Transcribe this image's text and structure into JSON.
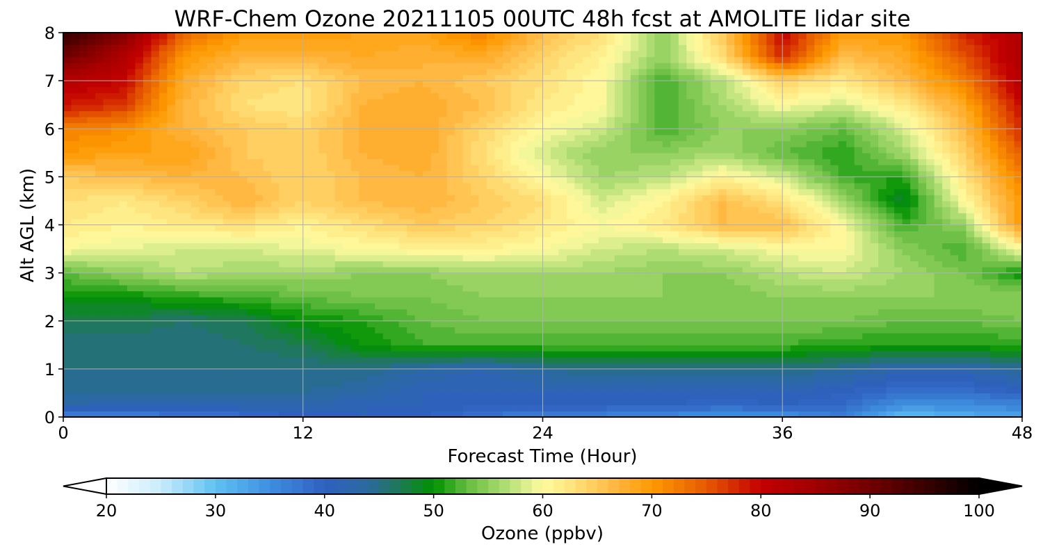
{
  "chart_data": {
    "type": "heatmap",
    "title": "WRF-Chem Ozone  20211105 00UTC 48h fcst at AMOLITE lidar site",
    "xlabel": "Forecast Time (Hour)",
    "ylabel": "Alt AGL (km)",
    "xlim": [
      0,
      48
    ],
    "ylim": [
      0,
      8
    ],
    "x_ticks": [
      "0",
      "12",
      "24",
      "36",
      "48"
    ],
    "y_ticks": [
      "0",
      "1",
      "2",
      "3",
      "4",
      "5",
      "6",
      "7",
      "8"
    ],
    "grid": true,
    "x_hours": [
      0,
      3,
      6,
      9,
      12,
      15,
      18,
      21,
      24,
      27,
      30,
      33,
      36,
      39,
      42,
      45,
      48
    ],
    "y_km": [
      0,
      0.25,
      0.5,
      1,
      1.5,
      2,
      2.5,
      3,
      3.5,
      4,
      4.5,
      5,
      5.5,
      6,
      6.5,
      7,
      7.5,
      8
    ],
    "ozone_ppbv": [
      [
        35,
        36,
        37,
        38,
        40,
        41,
        40,
        38,
        36,
        36,
        35,
        34,
        34,
        37,
        30,
        32,
        33
      ],
      [
        43,
        42,
        42,
        42,
        42,
        41,
        41,
        40,
        40,
        40,
        40,
        39,
        40,
        39,
        35,
        35,
        36
      ],
      [
        44,
        44,
        44,
        44,
        44,
        43,
        41,
        41,
        41,
        41,
        41,
        41,
        41,
        40,
        38,
        38,
        40
      ],
      [
        45,
        45,
        45,
        45,
        45,
        45,
        43,
        42,
        44,
        45,
        45,
        45,
        45,
        44,
        42,
        42,
        44
      ],
      [
        45,
        45,
        45,
        46,
        47,
        50,
        52,
        52,
        52,
        52,
        52,
        52,
        52,
        51,
        51,
        51,
        51
      ],
      [
        47,
        47,
        46,
        47,
        50,
        51,
        53,
        54,
        54,
        54,
        54,
        54,
        54,
        54,
        53,
        53,
        54
      ],
      [
        50,
        50,
        51,
        52,
        53,
        54,
        54,
        55,
        55,
        55,
        55,
        54,
        55,
        55,
        55,
        55,
        55
      ],
      [
        53,
        55,
        57,
        56,
        56,
        55,
        55,
        56,
        56,
        56,
        55,
        55,
        57,
        58,
        56,
        54,
        50
      ],
      [
        60,
        59,
        58,
        58,
        59,
        60,
        61,
        61,
        60,
        58,
        57,
        58,
        60,
        60,
        55,
        52,
        60
      ],
      [
        62,
        61,
        62,
        63,
        61,
        63,
        65,
        64,
        62,
        60,
        62,
        66,
        66,
        60,
        52,
        55,
        70
      ],
      [
        63,
        62,
        64,
        67,
        64,
        66,
        67,
        65,
        63,
        58,
        61,
        66,
        63,
        56,
        48,
        60,
        70
      ],
      [
        65,
        66,
        67,
        66,
        64,
        66,
        67,
        64,
        60,
        56,
        57,
        61,
        58,
        52,
        51,
        62,
        72
      ],
      [
        70,
        69,
        69,
        65,
        64,
        67,
        68,
        63,
        58,
        55,
        55,
        56,
        53,
        51,
        56,
        64,
        75
      ],
      [
        72,
        71,
        67,
        65,
        64,
        67,
        68,
        64,
        60,
        58,
        52,
        55,
        55,
        53,
        58,
        66,
        78
      ],
      [
        79,
        77,
        67,
        63,
        62,
        67,
        68,
        66,
        62,
        60,
        52,
        56,
        60,
        58,
        62,
        68,
        80
      ],
      [
        82,
        80,
        68,
        64,
        63,
        66,
        67,
        65,
        63,
        60,
        52,
        57,
        64,
        62,
        66,
        72,
        82
      ],
      [
        90,
        83,
        70,
        67,
        67,
        68,
        67,
        68,
        64,
        61,
        55,
        63,
        78,
        66,
        68,
        75,
        83
      ],
      [
        96,
        88,
        74,
        70,
        70,
        69,
        69,
        72,
        66,
        63,
        55,
        65,
        80,
        70,
        70,
        78,
        82
      ]
    ],
    "colorbar": {
      "label": "Ozone  (ppbv)",
      "ticks": [
        "20",
        "30",
        "40",
        "50",
        "60",
        "70",
        "80",
        "90",
        "100"
      ],
      "min": 20,
      "max": 100,
      "step": 1,
      "extend": "both",
      "stops": [
        {
          "v": 20,
          "c": "#ffffff"
        },
        {
          "v": 25,
          "c": "#c9ecfb"
        },
        {
          "v": 30,
          "c": "#5fc1f1"
        },
        {
          "v": 35,
          "c": "#3f8fe0"
        },
        {
          "v": 40,
          "c": "#2f60c0"
        },
        {
          "v": 44,
          "c": "#2a6a9e"
        },
        {
          "v": 47,
          "c": "#1d7a52"
        },
        {
          "v": 50,
          "c": "#009100"
        },
        {
          "v": 53,
          "c": "#63bc3f"
        },
        {
          "v": 57,
          "c": "#b8e07a"
        },
        {
          "v": 60,
          "c": "#fffca0"
        },
        {
          "v": 63,
          "c": "#ffe078"
        },
        {
          "v": 67,
          "c": "#ffb33a"
        },
        {
          "v": 70,
          "c": "#fe9a00"
        },
        {
          "v": 75,
          "c": "#e65a00"
        },
        {
          "v": 80,
          "c": "#c30000"
        },
        {
          "v": 85,
          "c": "#a00000"
        },
        {
          "v": 90,
          "c": "#700000"
        },
        {
          "v": 95,
          "c": "#3a0000"
        },
        {
          "v": 100,
          "c": "#000000"
        }
      ]
    }
  }
}
